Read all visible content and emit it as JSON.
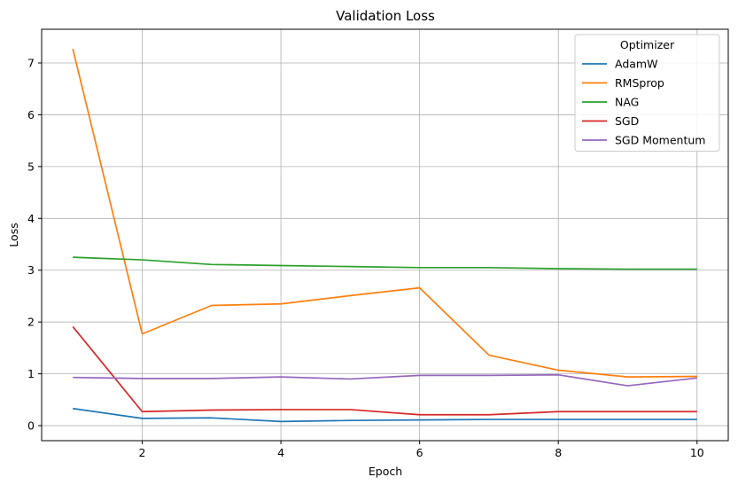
{
  "chart_data": {
    "type": "line",
    "title": "Validation Loss",
    "xlabel": "Epoch",
    "ylabel": "Loss",
    "x": [
      1,
      2,
      3,
      4,
      5,
      6,
      7,
      8,
      9,
      10
    ],
    "xlim": [
      0.55,
      10.45
    ],
    "ylim": [
      -0.29,
      7.65
    ],
    "xticks": [
      2,
      4,
      6,
      8,
      10
    ],
    "yticks": [
      0,
      1,
      2,
      3,
      4,
      5,
      6,
      7
    ],
    "grid": true,
    "legend": {
      "title": "Optimizer",
      "placement": "top-right"
    },
    "series": [
      {
        "name": "AdamW",
        "color": "#1f77b4",
        "values": [
          0.33,
          0.14,
          0.15,
          0.08,
          0.1,
          0.11,
          0.12,
          0.12,
          0.12,
          0.12
        ]
      },
      {
        "name": "RMSprop",
        "color": "#ff7f0e",
        "values": [
          7.27,
          1.77,
          2.32,
          2.35,
          2.51,
          2.66,
          1.36,
          1.07,
          0.94,
          0.95
        ]
      },
      {
        "name": "NAG",
        "color": "#2ca02c",
        "values": [
          3.25,
          3.2,
          3.11,
          3.09,
          3.07,
          3.05,
          3.05,
          3.03,
          3.02,
          3.02
        ]
      },
      {
        "name": "SGD",
        "color": "#d62728",
        "values": [
          1.91,
          0.27,
          0.3,
          0.31,
          0.31,
          0.21,
          0.21,
          0.27,
          0.27,
          0.27
        ]
      },
      {
        "name": "SGD Momentum",
        "color": "#9467bd",
        "values": [
          0.93,
          0.91,
          0.91,
          0.94,
          0.9,
          0.97,
          0.97,
          0.98,
          0.77,
          0.92
        ]
      }
    ]
  }
}
